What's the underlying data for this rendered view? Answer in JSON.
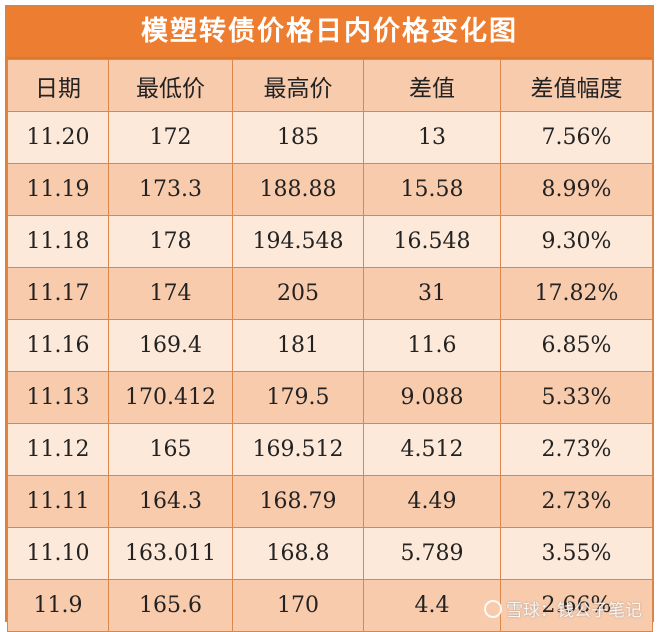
{
  "title": "模塑转债价格日内价格变化图",
  "headers": [
    "日期",
    "最低价",
    "最高价",
    "差值",
    "差值幅度"
  ],
  "rows": [
    [
      "11.20",
      "172",
      "185",
      "13",
      "7.56%"
    ],
    [
      "11.19",
      "173.3",
      "188.88",
      "15.58",
      "8.99%"
    ],
    [
      "11.18",
      "178",
      "194.548",
      "16.548",
      "9.30%"
    ],
    [
      "11.17",
      "174",
      "205",
      "31",
      "17.82%"
    ],
    [
      "11.16",
      "169.4",
      "181",
      "11.6",
      "6.85%"
    ],
    [
      "11.13",
      "170.412",
      "179.5",
      "9.088",
      "5.33%"
    ],
    [
      "11.12",
      "165",
      "169.512",
      "4.512",
      "2.73%"
    ],
    [
      "11.11",
      "164.3",
      "168.79",
      "4.49",
      "2.73%"
    ],
    [
      "11.10",
      "163.011",
      "168.8",
      "5.789",
      "3.55%"
    ],
    [
      "11.9",
      "165.6",
      "170",
      "4.4",
      "2.66%"
    ]
  ],
  "watermark": {
    "text": "雪球：钱公子笔记",
    "icon": "snowball-logo-icon"
  },
  "colors": {
    "title_bg": "#ed7d31",
    "row_light": "#fde9d9",
    "row_dark": "#f8cbad",
    "border": "#d9874a"
  }
}
